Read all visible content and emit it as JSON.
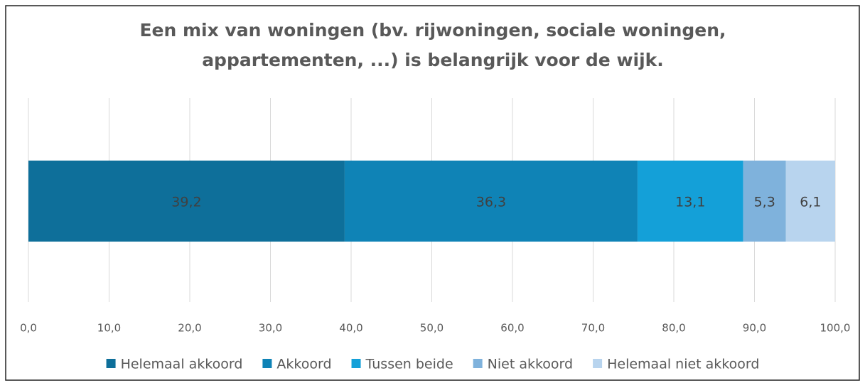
{
  "chart_data": {
    "type": "stacked-bar-horizontal",
    "title": [
      "Een mix van woningen (bv. rijwoningen, sociale woningen,",
      "appartementen, ...) is belangrijk voor de wijk."
    ],
    "series": [
      {
        "name": "Helemaal akkoord",
        "color": "#0e6f9a",
        "values": [
          39.2
        ],
        "value_labels": [
          "39,2"
        ]
      },
      {
        "name": "Akkoord",
        "color": "#0f83b6",
        "values": [
          36.3
        ],
        "value_labels": [
          "36,3"
        ]
      },
      {
        "name": "Tussen beide",
        "color": "#14a0d8",
        "values": [
          13.1
        ],
        "value_labels": [
          "13,1"
        ]
      },
      {
        "name": "Niet akkoord",
        "color": "#7fb2dc",
        "values": [
          5.3
        ],
        "value_labels": [
          "5,3"
        ]
      },
      {
        "name": "Helemaal niet akkoord",
        "color": "#b8d4ee",
        "values": [
          6.1
        ],
        "value_labels": [
          "6,1"
        ]
      }
    ],
    "xlim": [
      0,
      100
    ],
    "xticks": [
      {
        "value": 0,
        "label": "0,0"
      },
      {
        "value": 10,
        "label": "10,0"
      },
      {
        "value": 20,
        "label": "20,0"
      },
      {
        "value": 30,
        "label": "30,0"
      },
      {
        "value": 40,
        "label": "40,0"
      },
      {
        "value": 50,
        "label": "50,0"
      },
      {
        "value": 60,
        "label": "60,0"
      },
      {
        "value": 70,
        "label": "70,0"
      },
      {
        "value": 80,
        "label": "80,0"
      },
      {
        "value": 90,
        "label": "90,0"
      },
      {
        "value": 100,
        "label": "100,0"
      }
    ],
    "grid": true,
    "legend": "bottom"
  }
}
